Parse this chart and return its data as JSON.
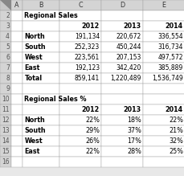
{
  "title1": "Regional Sales",
  "title2": "Regional Sales %",
  "headers": [
    "2012",
    "2013",
    "2014"
  ],
  "rows1": [
    [
      "North",
      "191,134",
      "220,672",
      "336,554"
    ],
    [
      "South",
      "252,323",
      "450,244",
      "316,734"
    ],
    [
      "West",
      "223,561",
      "207,153",
      "497,572"
    ],
    [
      "East",
      "192,123",
      "342,420",
      "385,889"
    ],
    [
      "Total",
      "859,141",
      "1,220,489",
      "1,536,749"
    ]
  ],
  "rows2": [
    [
      "North",
      "22%",
      "18%",
      "22%"
    ],
    [
      "South",
      "29%",
      "37%",
      "21%"
    ],
    [
      "West",
      "26%",
      "17%",
      "32%"
    ],
    [
      "East",
      "22%",
      "28%",
      "25%"
    ]
  ],
  "col_letters": [
    "A",
    "B",
    "C",
    "D",
    "E"
  ],
  "num_rows": 16,
  "bg_color": "#e8e8e8",
  "cell_bg": "#ffffff",
  "header_bg": "#d4d4d4",
  "grid_color": "#a0a0a0",
  "text_color": "#000000",
  "row_num_color": "#555555",
  "col_letter_color": "#333333",
  "corner_bg": "#c8c8c8"
}
